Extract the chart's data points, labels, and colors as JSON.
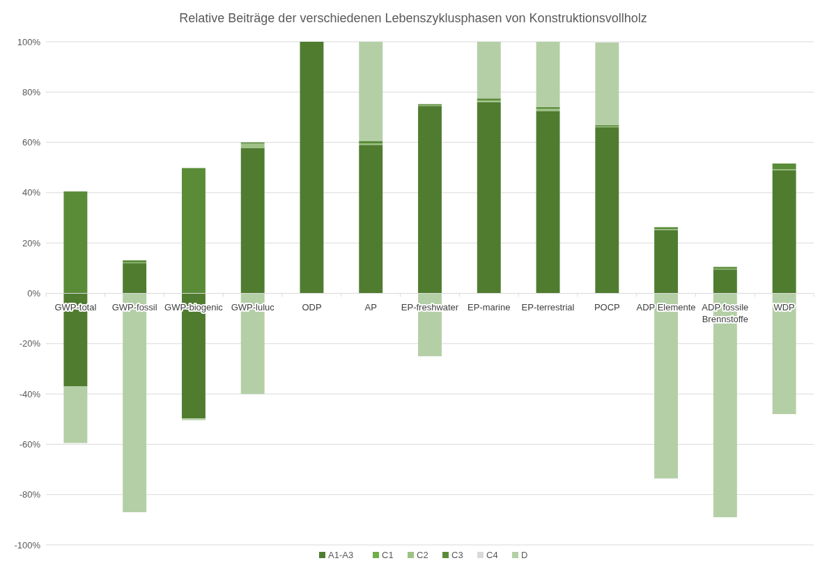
{
  "chart_data": {
    "type": "bar",
    "stacked": true,
    "title": "Relative Beiträge der verschiedenen Lebenszyklusphasen von Konstruktionsvollholz",
    "categories": [
      "GWP-total",
      "GWP-fossil",
      "GWP-biogenic",
      "GWP-luluc",
      "ODP",
      "AP",
      "EP-freshwater",
      "EP-marine",
      "EP-terrestrial",
      "POCP",
      "ADP Elemente",
      "ADP fossile Brennstoffe",
      "WDP"
    ],
    "series": [
      {
        "name": "A1-A3",
        "color": "#507c30",
        "values": [
          -37,
          12,
          -49.7,
          57.8,
          100,
          59,
          74.5,
          76,
          72.5,
          66,
          25.2,
          9.5,
          49
        ]
      },
      {
        "name": "C1",
        "color": "#70ad47",
        "values": [
          0,
          0,
          0,
          0,
          0,
          0,
          0,
          0,
          0,
          0,
          0,
          0,
          0
        ]
      },
      {
        "name": "C2",
        "color": "#9dc285",
        "values": [
          0,
          0.3,
          0,
          1.7,
          0,
          0.6,
          0.2,
          0.6,
          0.8,
          0.3,
          0.3,
          0.3,
          0.3
        ]
      },
      {
        "name": "C3",
        "color": "#5a8c38",
        "values": [
          40.5,
          0.8,
          49.8,
          0.5,
          0,
          1,
          0.5,
          0.9,
          0.8,
          0.6,
          0.8,
          0.7,
          2.3
        ]
      },
      {
        "name": "C4",
        "color": "#d9d9d9",
        "values": [
          0,
          0,
          0,
          0,
          0,
          0,
          0,
          0,
          0,
          0,
          0,
          0,
          0
        ]
      },
      {
        "name": "D",
        "color": "#b4cfa6",
        "values": [
          -22.5,
          -87,
          -0.7,
          -40,
          0,
          39.4,
          -25,
          22.5,
          25.9,
          32.8,
          -73.6,
          -89,
          -48
        ]
      }
    ],
    "ylim": [
      -100,
      100
    ],
    "yticks": [
      {
        "value": -100,
        "label": "-100%"
      },
      {
        "value": -80,
        "label": "-80%"
      },
      {
        "value": -60,
        "label": "-60%"
      },
      {
        "value": -40,
        "label": "-40%"
      },
      {
        "value": -20,
        "label": "-20%"
      },
      {
        "value": 0,
        "label": "0%"
      },
      {
        "value": 20,
        "label": "20%"
      },
      {
        "value": 40,
        "label": "40%"
      },
      {
        "value": 60,
        "label": "60%"
      },
      {
        "value": 80,
        "label": "80%"
      },
      {
        "value": 100,
        "label": "100%"
      }
    ],
    "grid": "y",
    "legend": "bottom"
  }
}
